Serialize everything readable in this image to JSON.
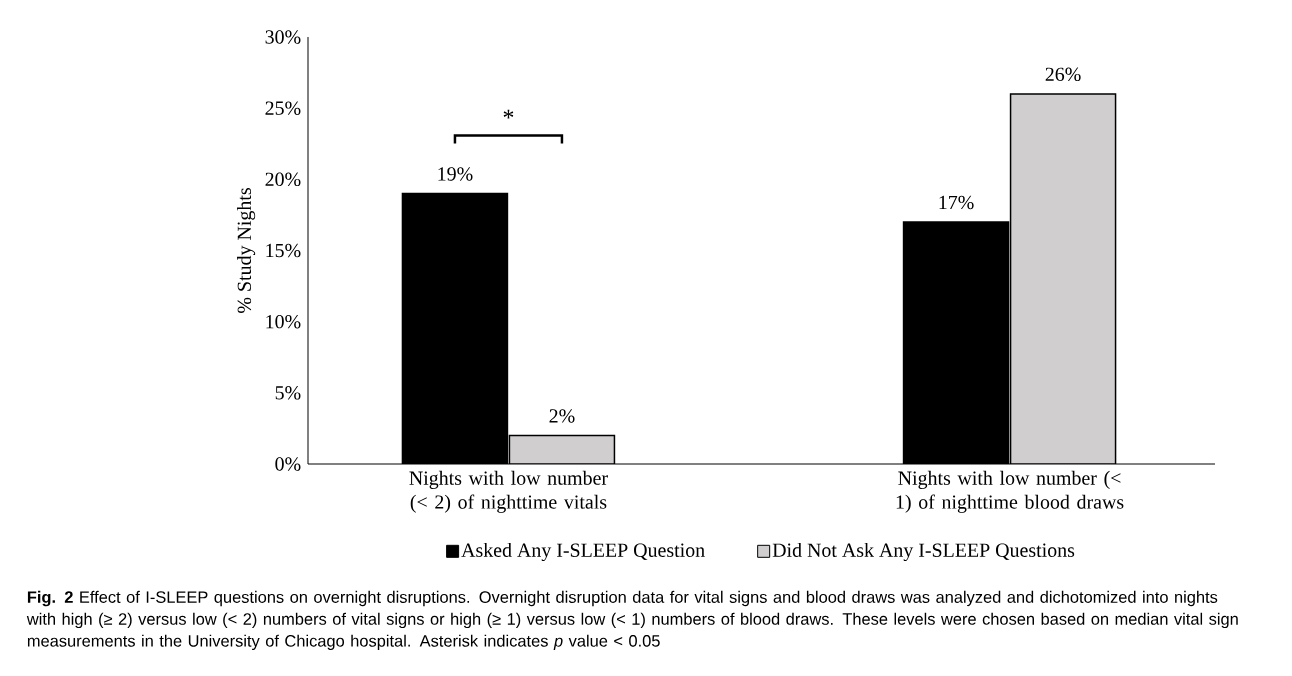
{
  "chart_data": {
    "type": "bar",
    "ylabel": "% Study Nights",
    "categories": [
      "Nights with low number (< 2) of nighttime vitals",
      "Nights with low number (< 1) of nighttime blood draws"
    ],
    "series": [
      {
        "name": "Asked Any I-SLEEP Question",
        "color": "#000000",
        "values": [
          19,
          17
        ],
        "value_labels": [
          "19%",
          "17%"
        ]
      },
      {
        "name": "Did Not Ask Any I-SLEEP Questions",
        "color": "#d0cece",
        "values": [
          2,
          26
        ],
        "value_labels": [
          "2%",
          "26%"
        ]
      }
    ],
    "ylim": [
      0,
      30
    ],
    "yticks": [
      {
        "value": 0,
        "label": "0%"
      },
      {
        "value": 5,
        "label": "5%"
      },
      {
        "value": 10,
        "label": "10%"
      },
      {
        "value": 15,
        "label": "15%"
      },
      {
        "value": 20,
        "label": "20%"
      },
      {
        "value": 25,
        "label": "25%"
      },
      {
        "value": 30,
        "label": "30%"
      }
    ],
    "grid": false,
    "legend": "bottom",
    "annotations": [
      "*",
      "**Fig. 2** Effect of I-SLEEP questions on overnight disruptions. Overnight disruption data for vital signs and blood draws was analyzed and dichotomized into nights with high (≥ 2) versus low (< 2) numbers of vital signs or high (≥ 1) versus low (< 1) numbers of blood draws. These levels were chosen based on median vital sign measurements in the University of Chicago hospital. Asterisk indicates *p* value < 0.05"
    ]
  }
}
